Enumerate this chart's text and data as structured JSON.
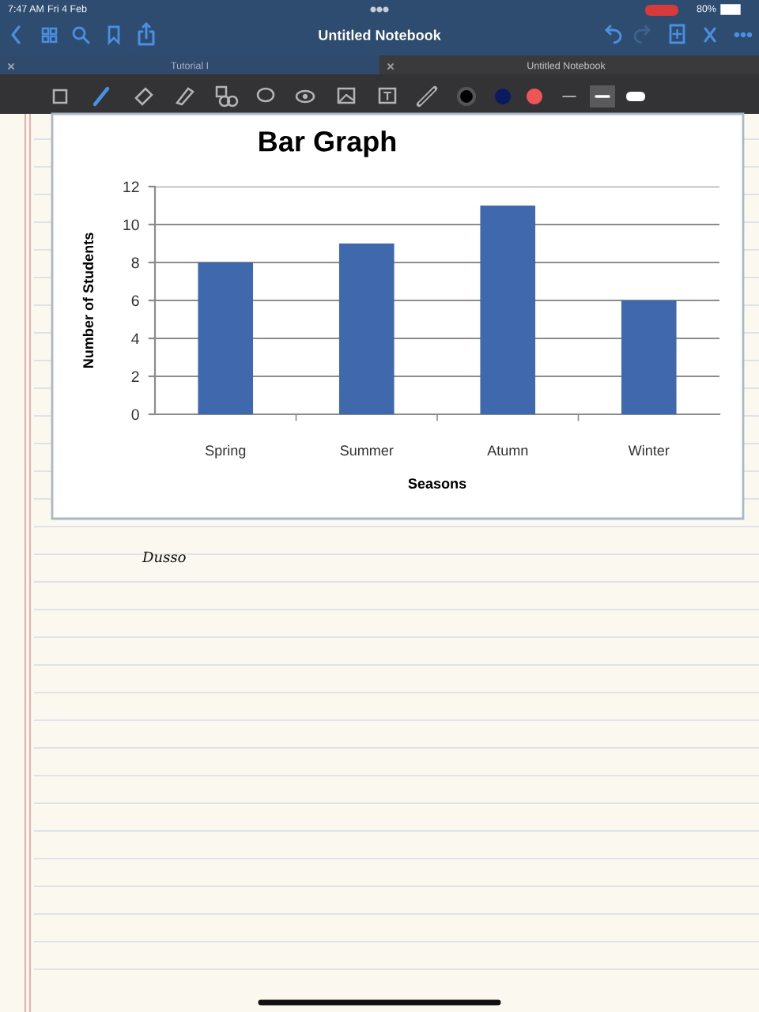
{
  "chart_data": {
    "type": "bar",
    "title": "Bar Graph",
    "xlabel": "Seasons",
    "ylabel": "Number of Students",
    "categories": [
      "Spring",
      "Summer",
      "Atumn",
      "Winter"
    ],
    "values": [
      8,
      9,
      11,
      6
    ],
    "color": "#4068ad",
    "ylim": [
      0,
      12
    ],
    "yticks": [
      0,
      2,
      4,
      6,
      8,
      10,
      12
    ],
    "grid": "y",
    "annotations": [
      "7:47 AM",
      "Fri 4 Feb",
      "80%",
      "Untitled Notebook",
      "Tutorial I",
      "Untitled Notebook",
      "Dusso"
    ]
  }
}
